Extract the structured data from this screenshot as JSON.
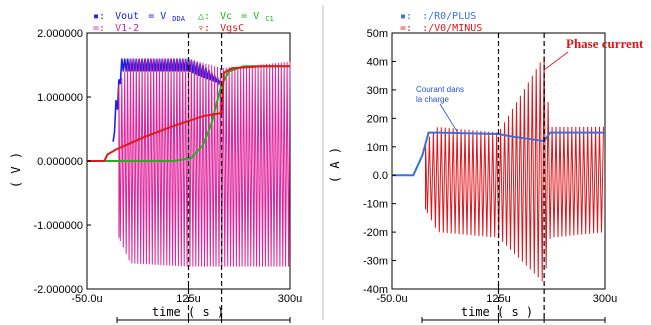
{
  "colors": {
    "vout": "#2020e8",
    "v12": "#e0219a",
    "vc": "#22b022",
    "vgsc": "#e01a1a",
    "plus": "#3a6fe0",
    "minus": "#e0151b",
    "annotation": "#2a4fd0"
  },
  "chart_data": [
    {
      "type": "line",
      "panel": "left",
      "xlabel": "time ( s )",
      "ylabel": "( V )",
      "xlim": [
        -50,
        300
      ],
      "ylim": [
        -2,
        2
      ],
      "x_ticks": [
        "-50.0u",
        "125u",
        "300u"
      ],
      "y_ticks": [
        "2.000000",
        "1.000000",
        "0.000000",
        "-1.000000",
        "-2.000000"
      ],
      "vlines": [
        125,
        182
      ],
      "legend": {
        "vout": {
          "marker": "▪:",
          "name": "Vout",
          "eq": "= V",
          "sub": "DDA"
        },
        "v12": {
          "marker": "=:",
          "name": "V1-2"
        },
        "vc": {
          "marker": "△:",
          "name": "Vc",
          "eq": "= V",
          "sub": "C1"
        },
        "vgsc": {
          "marker": "▿:",
          "name": "VgsC"
        }
      },
      "series": [
        {
          "name": "Vout",
          "color": "vout",
          "envelope": {
            "x": [
              -5,
              0,
              10,
              25,
              125,
              150,
              182
            ],
            "hi": [
              0.3,
              0.95,
              1.6,
              1.6,
              1.6,
              1.5,
              1.25
            ],
            "lo": [
              0.3,
              0.6,
              1.4,
              1.4,
              1.4,
              1.3,
              1.2
            ]
          }
        },
        {
          "name": "V1-2",
          "color": "v12",
          "envelope": {
            "x": [
              5,
              25,
              125,
              182,
              300
            ],
            "hi": [
              1.2,
              1.6,
              1.6,
              1.45,
              1.55
            ],
            "lo": [
              -1.2,
              -1.6,
              -1.65,
              -1.65,
              -1.65
            ]
          }
        },
        {
          "name": "Vc",
          "color": "vc",
          "points": {
            "x": [
              -50,
              100,
              130,
              150,
              165,
              182,
              195,
              220,
              300
            ],
            "y": [
              0.0,
              0.0,
              0.05,
              0.25,
              0.6,
              1.2,
              1.4,
              1.48,
              1.48
            ]
          }
        },
        {
          "name": "VgsC",
          "color": "vgsc",
          "points": {
            "x": [
              -50,
              -20,
              -15,
              0,
              50,
              100,
              150,
              182,
              186,
              200,
              250,
              300
            ],
            "y": [
              0.0,
              0.0,
              0.1,
              0.18,
              0.38,
              0.55,
              0.7,
              0.75,
              1.38,
              1.45,
              1.48,
              1.48
            ]
          }
        }
      ]
    },
    {
      "type": "line",
      "panel": "right",
      "xlabel": "time ( s )",
      "ylabel": "( A )",
      "xlim": [
        -50,
        300
      ],
      "ylim": [
        -40,
        50
      ],
      "x_ticks": [
        "-50.0u",
        "125u",
        "300u"
      ],
      "y_ticks": [
        "50m",
        "40m",
        "30m",
        "20m",
        "10m",
        "0.0",
        "-10m",
        "-20m",
        "-30m",
        "-40m"
      ],
      "vlines": [
        125,
        200
      ],
      "legend": {
        "plus": {
          "marker": "▪:",
          "name": ":/R0/PLUS"
        },
        "minus": {
          "marker": "=:",
          "name": ":/V0/MINUS"
        }
      },
      "annotations": {
        "courant_1": "Courant dans",
        "courant_2": "la charge",
        "phase": "Phase current"
      },
      "series": [
        {
          "name": ":/R0/PLUS",
          "color": "plus",
          "points": {
            "x": [
              -50,
              -15,
              0,
              10,
              25,
              125,
              150,
              200,
              210,
              300
            ],
            "y": [
              0,
              0,
              7,
              15,
              15,
              14.5,
              13.5,
              12,
              15,
              15
            ]
          }
        },
        {
          "name": ":/V0/MINUS",
          "color": "minus",
          "envelope": {
            "x": [
              5,
              25,
              125,
              200,
              210,
              300
            ],
            "hi": [
              12,
              17,
              15,
              42,
              17,
              17
            ],
            "lo": [
              -12,
              -20,
              -22,
              -38,
              -22,
              -20
            ]
          }
        }
      ]
    }
  ]
}
